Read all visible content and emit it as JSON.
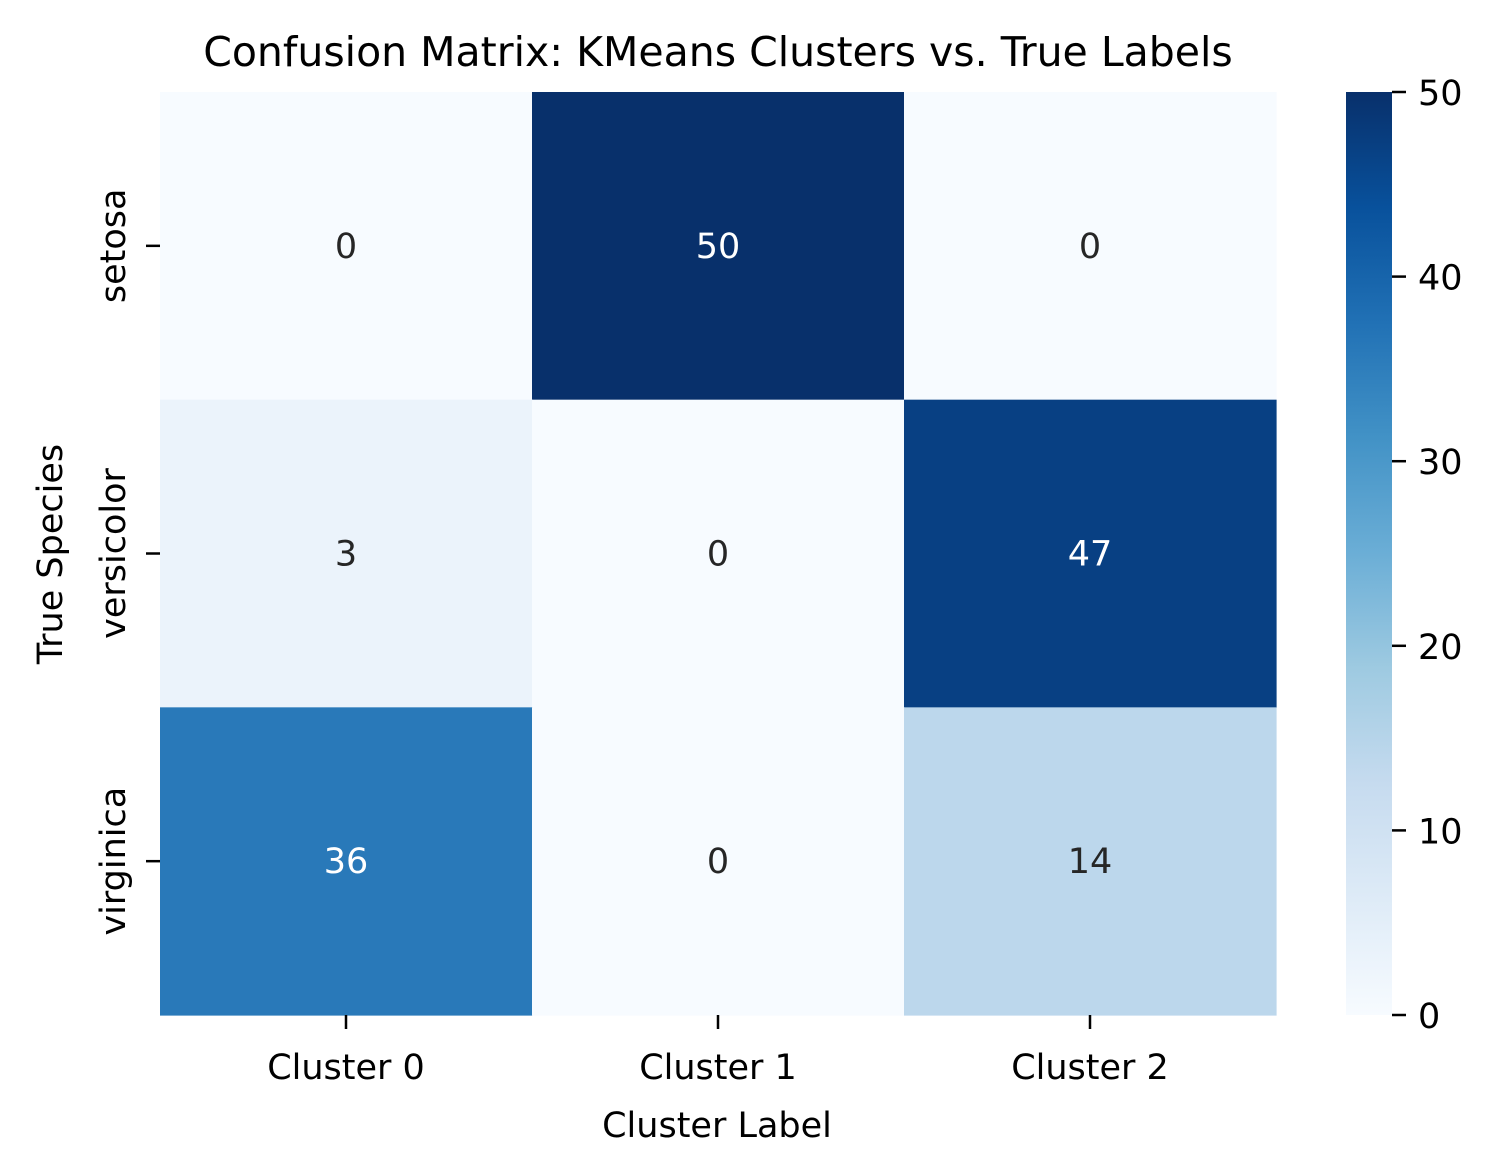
{
  "chart_data": {
    "type": "heatmap",
    "title": "Confusion Matrix: KMeans Clusters vs. True Labels",
    "xlabel": "Cluster Label",
    "ylabel": "True Species",
    "x_categories": [
      "Cluster 0",
      "Cluster 1",
      "Cluster 2"
    ],
    "y_categories": [
      "setosa",
      "versicolor",
      "virginica"
    ],
    "values": [
      [
        0,
        50,
        0
      ],
      [
        3,
        0,
        47
      ],
      [
        36,
        0,
        14
      ]
    ],
    "annotated": true,
    "colormap": "Blues",
    "colorbar": {
      "range": [
        0,
        50
      ],
      "ticks": [
        0,
        10,
        20,
        30,
        40,
        50
      ],
      "tick_labels": [
        "0",
        "10",
        "20",
        "30",
        "40",
        "50"
      ]
    },
    "colors": {
      "cmap_stops": [
        "#f7fbff",
        "#deebf7",
        "#c6dbef",
        "#9ecae1",
        "#6baed6",
        "#4292c6",
        "#2171b5",
        "#08519c",
        "#08306b"
      ],
      "annotation_dark_text": "#262626",
      "annotation_light_text": "#ffffff"
    }
  }
}
